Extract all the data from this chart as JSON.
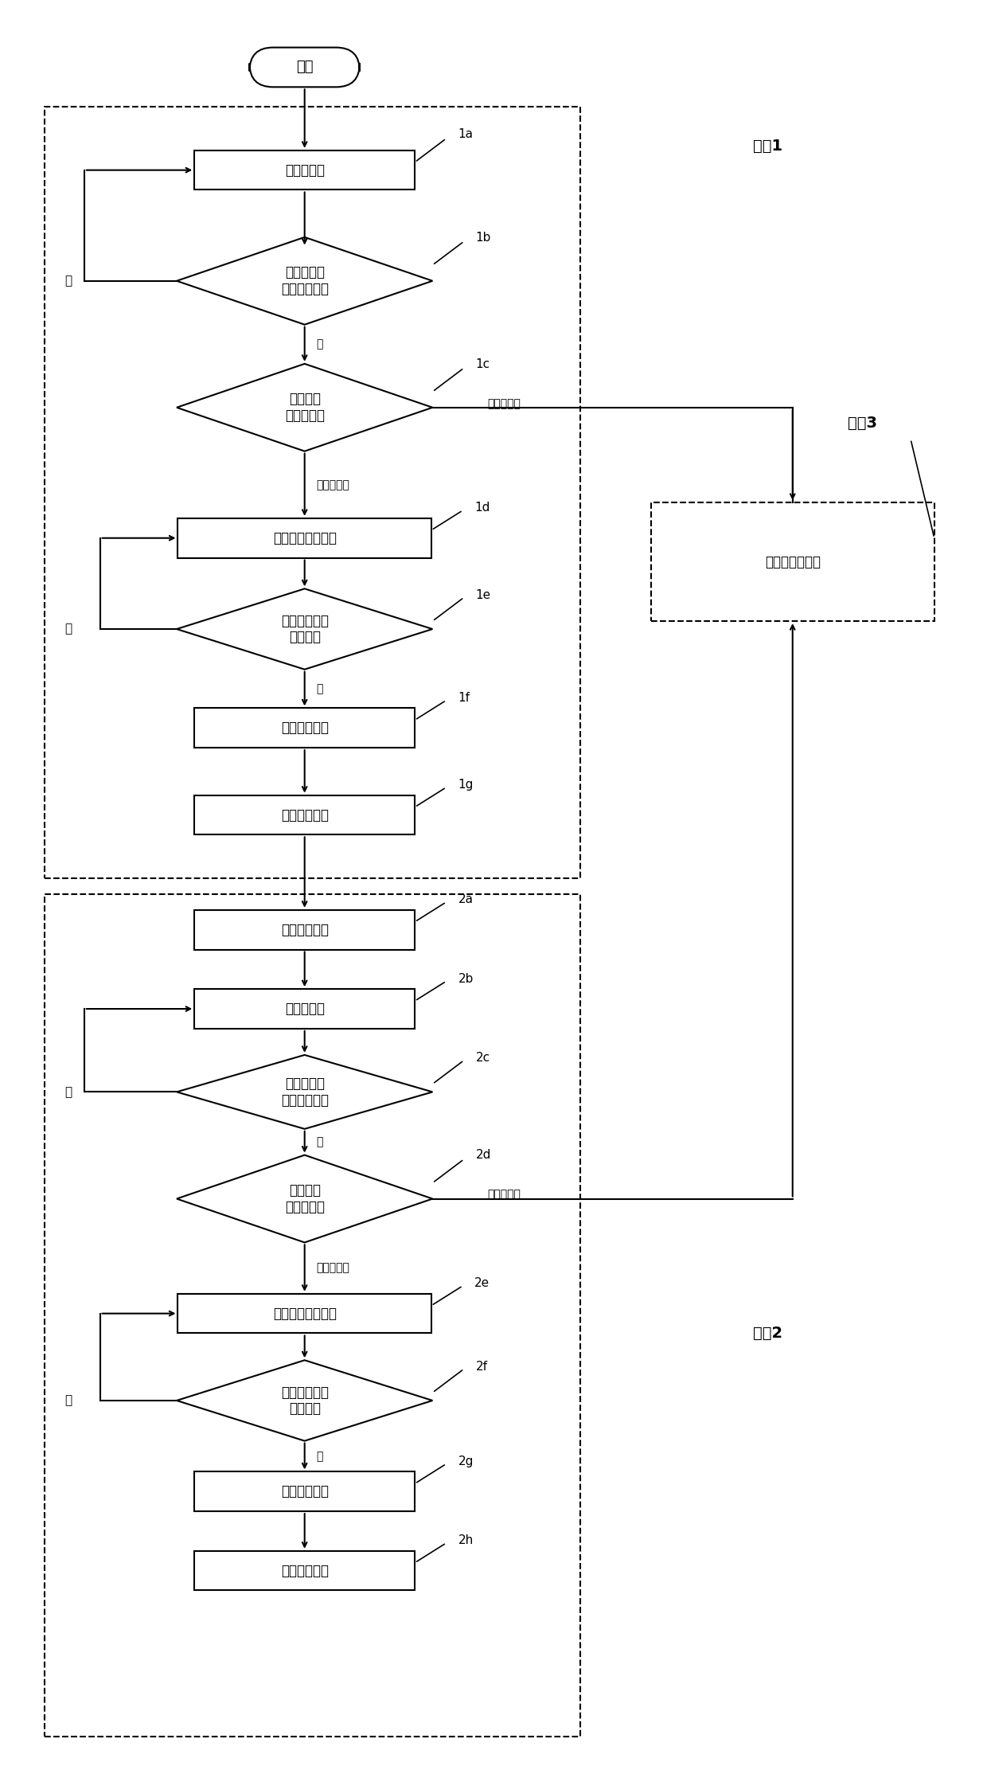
{
  "fig_width": 12.4,
  "fig_height": 22.28,
  "bg_color": "#ffffff",
  "line_color": "#000000",
  "text_color": "#000000",
  "box_color": "#ffffff",
  "dash_box_color": "#000000",
  "step1_label": "步骤1",
  "step2_label": "步骤2",
  "step3_label": "步骤3",
  "start_text": "开始",
  "nodes_step1": [
    {
      "id": "1a",
      "type": "rect",
      "text": "获取运行图",
      "label": "1a"
    },
    {
      "id": "1b",
      "type": "diamond",
      "text": "判断运行图\n是否存在冲突",
      "label": "1b"
    },
    {
      "id": "1c",
      "type": "diamond",
      "text": "判断故障\n类型及范围",
      "label": "1c"
    },
    {
      "id": "1d",
      "type": "rect",
      "text": "自动选择调整方案",
      "label": "1d"
    },
    {
      "id": "1e",
      "type": "diamond",
      "text": "检查调整方案\n是否合理",
      "label": "1e"
    },
    {
      "id": "1f",
      "type": "rect",
      "text": "应用调整方案",
      "label": "1f"
    },
    {
      "id": "1g",
      "type": "rect",
      "text": "反馈调整结果",
      "label": "1g"
    }
  ],
  "nodes_step2": [
    {
      "id": "2a",
      "type": "rect",
      "text": "传送影响数据",
      "label": "2a"
    },
    {
      "id": "2b",
      "type": "rect",
      "text": "获取运行图",
      "label": "2b"
    },
    {
      "id": "2c",
      "type": "diamond",
      "text": "判断运行图\n是否存在冲突",
      "label": "2c"
    },
    {
      "id": "2d",
      "type": "diamond",
      "text": "判断故障\n类型及范围",
      "label": "2d"
    },
    {
      "id": "2e",
      "type": "rect",
      "text": "自动选择调整方案",
      "label": "2e"
    },
    {
      "id": "2f",
      "type": "diamond",
      "text": "检查调整方案\n是否合理",
      "label": "2f"
    },
    {
      "id": "2g",
      "type": "rect",
      "text": "应用调整方案",
      "label": "2g"
    },
    {
      "id": "2h",
      "type": "rect",
      "text": "反馈调整结果",
      "label": "2h"
    }
  ],
  "step3_box_text": "全局运行图调整"
}
